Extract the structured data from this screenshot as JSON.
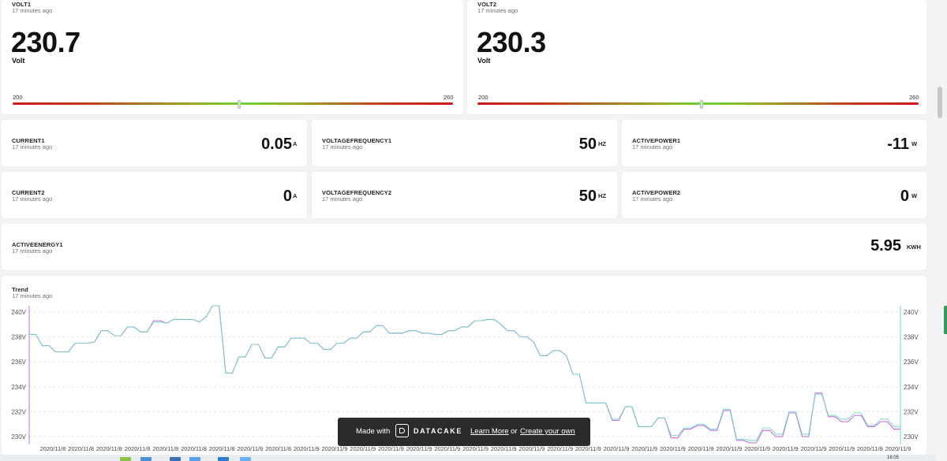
{
  "volt1": {
    "title": "VOLT1",
    "updated": "17 minutes ago",
    "value": "230.7",
    "unit": "Volt",
    "min": "200",
    "max": "260"
  },
  "volt2": {
    "title": "VOLT2",
    "updated": "17 minutes ago",
    "value": "230.3",
    "unit": "Volt",
    "min": "200",
    "max": "260"
  },
  "tiles": [
    {
      "title": "CURRENT1",
      "updated": "17 minutes ago",
      "value": "0.05",
      "unit": "A"
    },
    {
      "title": "VOLTAGEFREQUENCY1",
      "updated": "17 minutes ago",
      "value": "50",
      "unit": "HZ"
    },
    {
      "title": "ACTIVEPOWER1",
      "updated": "17 minutes ago",
      "value": "-11",
      "unit": "W"
    },
    {
      "title": "CURRENT2",
      "updated": "17 minutes ago",
      "value": "0",
      "unit": "A"
    },
    {
      "title": "VOLTAGEFREQUENCY2",
      "updated": "17 minutes ago",
      "value": "50",
      "unit": "HZ"
    },
    {
      "title": "ACTIVEPOWER2",
      "updated": "17 minutes ago",
      "value": "0",
      "unit": "W"
    }
  ],
  "energy": {
    "title": "ACTIVEENERGY1",
    "updated": "17 minutes ago",
    "value": "5.95",
    "unit": "KWH"
  },
  "trend": {
    "title": "Trend",
    "updated": "17 minutes ago"
  },
  "banner": {
    "made_with": "Made with",
    "brand": "DATACAKE",
    "learn_more": "Learn More",
    "or": "or",
    "create": "Create your own"
  },
  "taskbar": {
    "clock": "16:05"
  },
  "chart_data": {
    "type": "line",
    "ylim": [
      229.5,
      240.5
    ],
    "y_ticks_left": [
      "240V",
      "238V",
      "236V",
      "234V",
      "232V",
      "230V"
    ],
    "y_ticks_right": [
      "240V",
      "238V",
      "236V",
      "234V",
      "232V",
      "230V"
    ],
    "x_tick_labels": [
      "2020/11/8",
      "2020/11/8",
      "2020/11/8",
      "2020/11/8",
      "2020/11/8",
      "2020/11/8",
      "2020/11/8",
      "2020/11/8",
      "2020/11/8",
      "2020/11/9",
      "2020/11/9",
      "2020/11/9",
      "2020/11/9",
      "2020/11/9",
      "2020/11/9",
      "2020/11/9",
      "2020/11/9",
      "2020/11/9",
      "2020/11/9",
      "2020/11/9",
      "2020/11/9",
      "2020/11/9",
      "2020/11/9",
      "2020/11/9",
      "2020/11/9",
      "2020/11/9",
      "2020/11/9",
      "2020/11/9",
      "2020/11/9",
      "2020/11/9",
      "2020/11/9"
    ],
    "series": [
      {
        "color": "#c66ee0",
        "values": [
          238.2,
          238.2,
          237.3,
          237.3,
          236.8,
          236.8,
          236.8,
          237.5,
          237.5,
          237.5,
          237.6,
          238.5,
          238.5,
          238.1,
          238.1,
          238.8,
          238.8,
          238.4,
          238.4,
          239.3,
          239.3,
          239.1,
          239.4,
          239.4,
          239.4,
          239.4,
          239.2,
          239.6,
          240.5,
          240.5,
          235.1,
          235.1,
          236.4,
          236.4,
          237.4,
          237.4,
          236.3,
          236.3,
          237.2,
          237.2,
          237.9,
          237.9,
          237.9,
          237.5,
          237.5,
          237.0,
          237.0,
          237.5,
          237.5,
          237.9,
          237.9,
          238.4,
          238.4,
          238.9,
          238.9,
          238.3,
          238.3,
          238.3,
          238.5,
          238.5,
          238.3,
          238.3,
          238.2,
          238.2,
          238.5,
          238.5,
          238.8,
          238.8,
          239.3,
          239.3,
          239.4,
          239.4,
          239.0,
          238.5,
          238.5,
          238.0,
          238.0,
          237.6,
          236.5,
          236.5,
          236.9,
          236.9,
          236.5,
          235.0,
          235.0,
          232.7,
          232.7,
          232.7,
          232.7,
          231.3,
          231.3,
          232.4,
          232.4,
          230.8,
          230.8,
          230.8,
          231.5,
          231.5,
          229.9,
          229.9,
          230.6,
          230.6,
          230.9,
          230.9,
          230.5,
          230.5,
          232.1,
          232.1,
          229.7,
          229.7,
          229.5,
          229.5,
          230.5,
          230.5,
          230.0,
          230.0,
          231.9,
          231.9,
          230.0,
          230.0,
          233.5,
          233.5,
          231.6,
          231.6,
          231.2,
          231.2,
          231.7,
          231.7,
          230.8,
          230.8,
          231.2,
          231.2,
          230.6,
          230.6
        ]
      },
      {
        "color": "#6fd6c8",
        "values": [
          238.2,
          238.2,
          237.3,
          237.3,
          236.8,
          236.8,
          236.8,
          237.5,
          237.5,
          237.5,
          237.6,
          238.5,
          238.5,
          238.1,
          238.1,
          238.8,
          238.8,
          238.4,
          238.4,
          239.2,
          239.2,
          239.1,
          239.4,
          239.4,
          239.4,
          239.4,
          239.2,
          239.6,
          240.5,
          240.5,
          235.1,
          235.1,
          236.4,
          236.4,
          237.4,
          237.4,
          236.3,
          236.3,
          237.2,
          237.2,
          237.9,
          237.9,
          237.9,
          237.5,
          237.5,
          237.0,
          237.0,
          237.5,
          237.5,
          237.9,
          237.9,
          238.4,
          238.4,
          238.9,
          238.9,
          238.3,
          238.3,
          238.3,
          238.5,
          238.5,
          238.3,
          238.3,
          238.2,
          238.2,
          238.5,
          238.5,
          238.8,
          238.8,
          239.3,
          239.3,
          239.4,
          239.4,
          239.0,
          238.5,
          238.5,
          238.0,
          238.0,
          237.6,
          236.5,
          236.5,
          236.9,
          236.9,
          236.5,
          235.0,
          235.0,
          232.7,
          232.7,
          232.7,
          232.7,
          231.4,
          231.4,
          232.4,
          232.4,
          230.8,
          230.8,
          230.8,
          231.5,
          231.5,
          230.1,
          230.1,
          230.7,
          230.7,
          231.0,
          231.0,
          230.6,
          230.6,
          232.2,
          232.2,
          229.8,
          229.8,
          229.7,
          229.7,
          230.7,
          230.7,
          230.2,
          230.2,
          232.0,
          232.0,
          230.2,
          230.2,
          233.4,
          233.4,
          231.7,
          231.7,
          231.4,
          231.4,
          231.9,
          231.9,
          230.9,
          230.9,
          231.4,
          231.4,
          230.8,
          230.8
        ]
      }
    ]
  }
}
